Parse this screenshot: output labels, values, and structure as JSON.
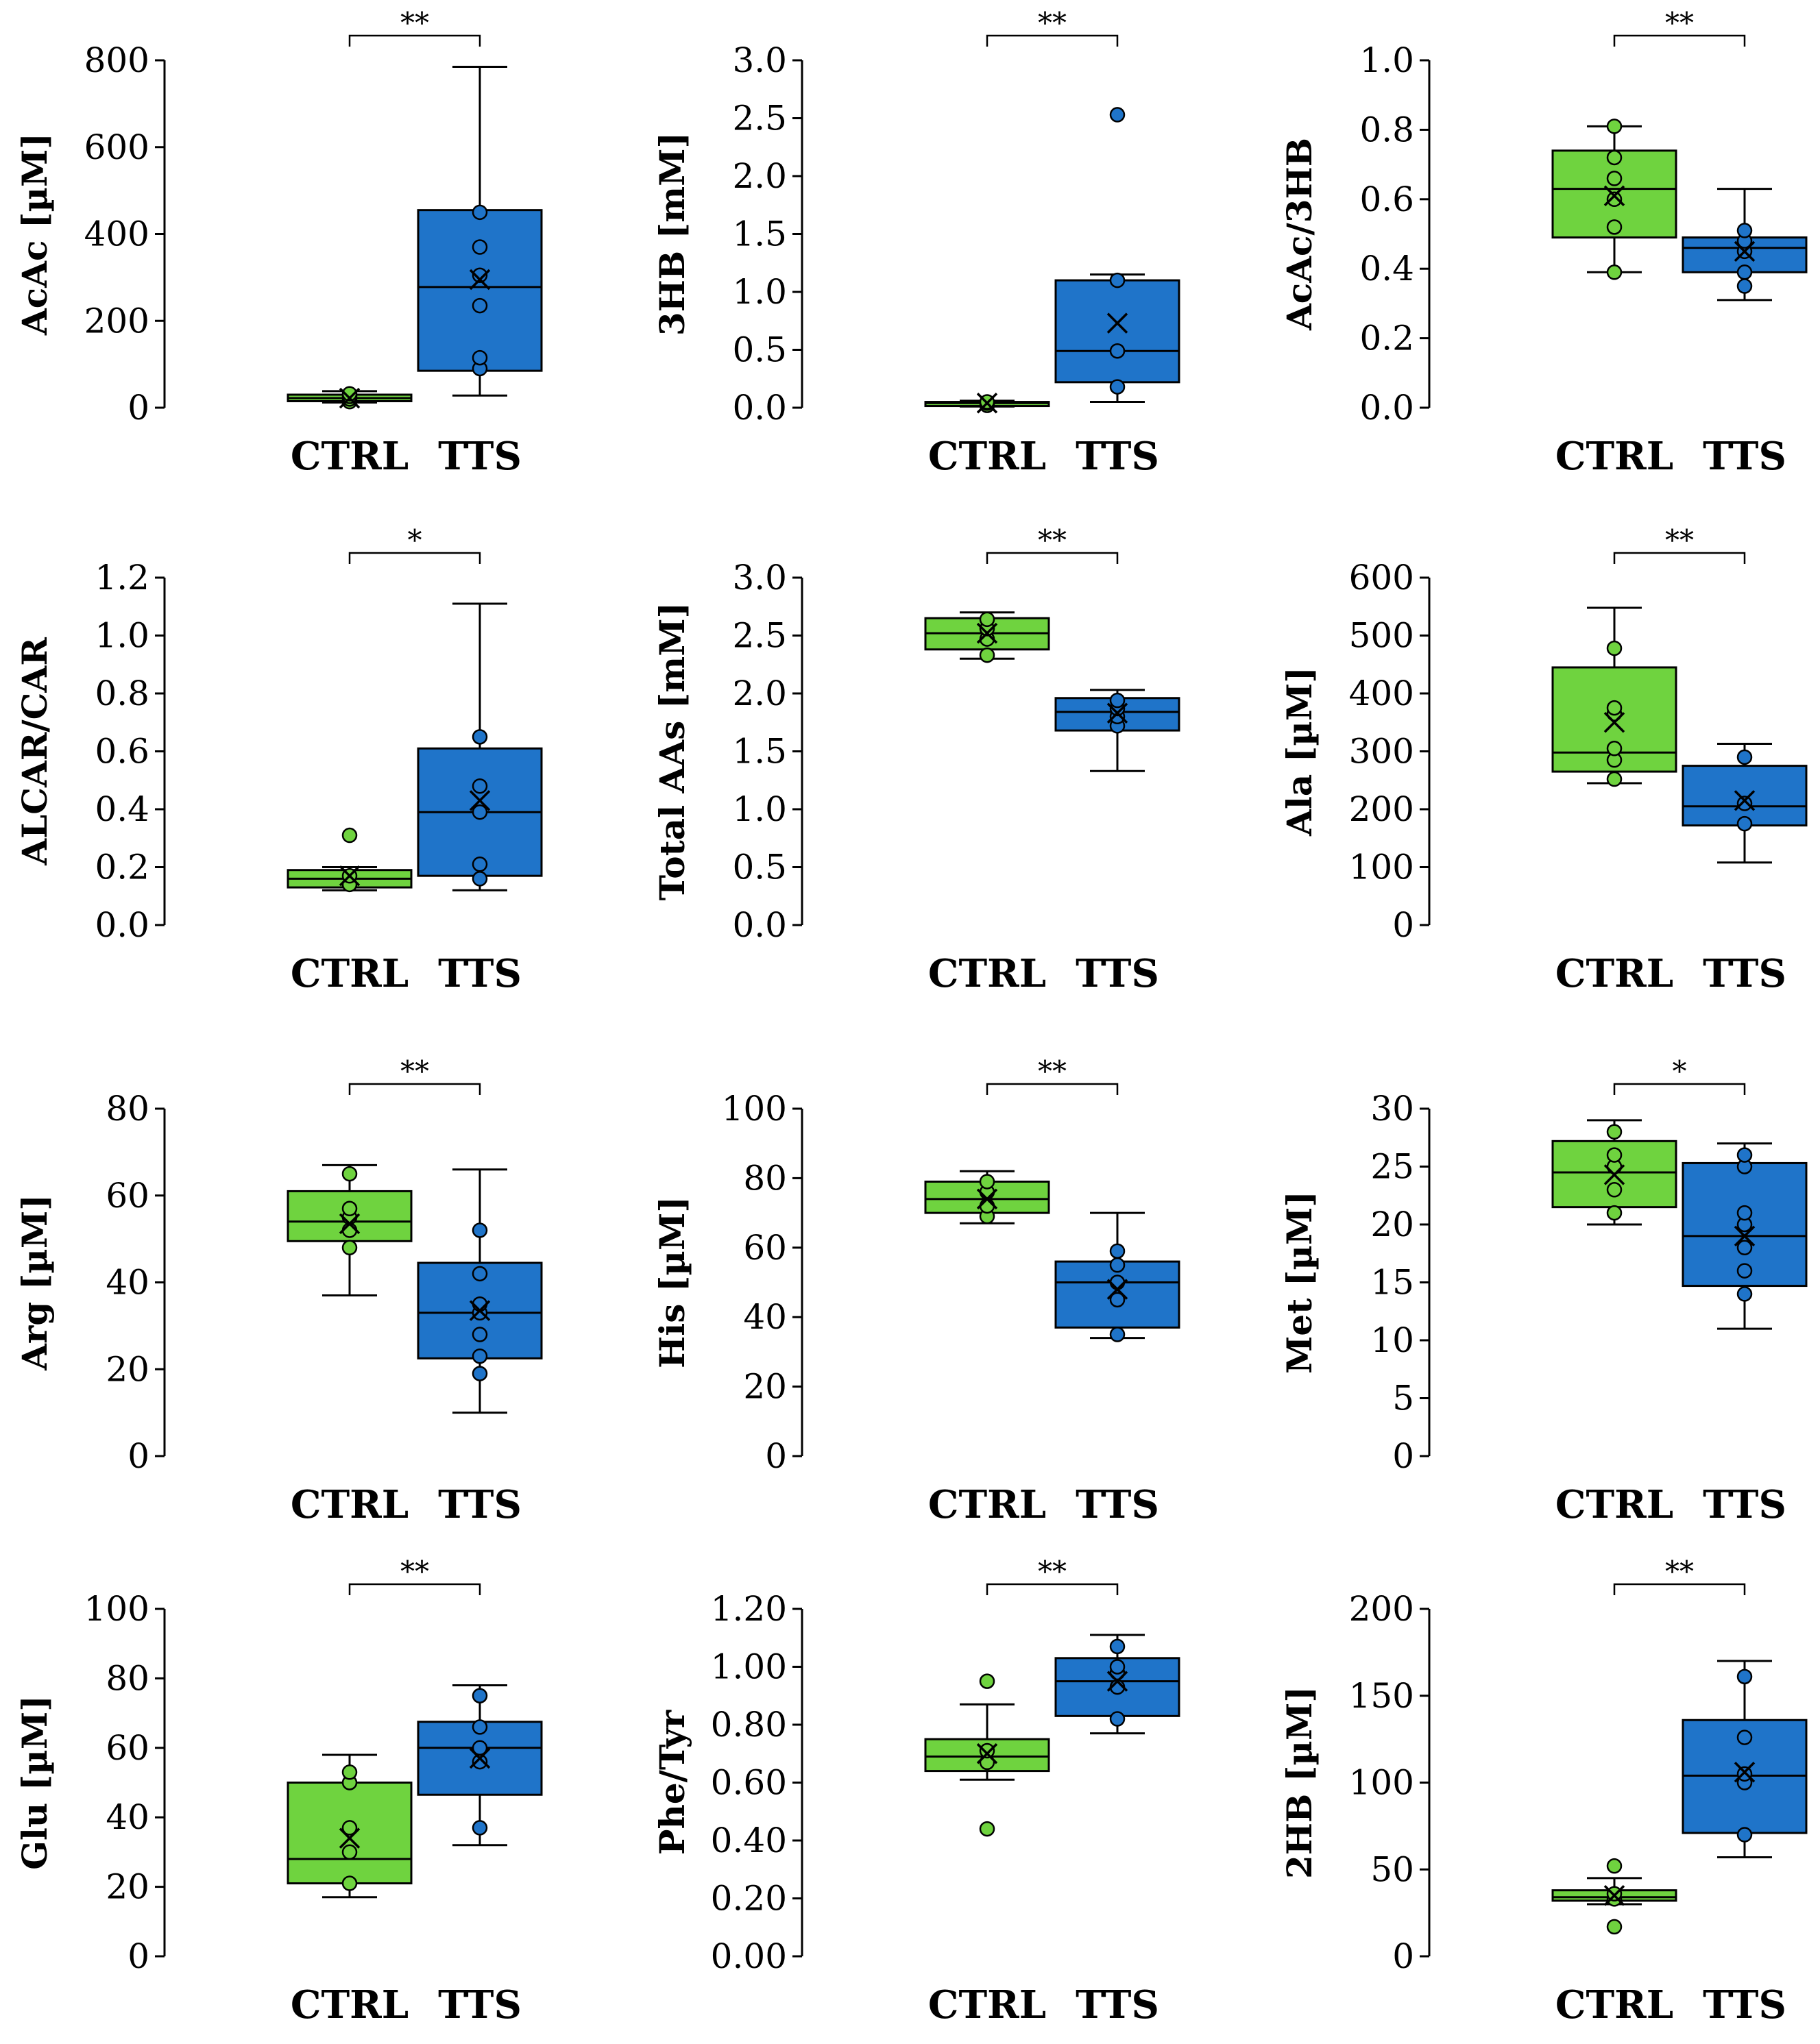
{
  "figure_colors": {
    "CTRL": "#6fd33f",
    "TTS": "#1f74c9",
    "stroke": "#000000"
  },
  "chart_data": [
    {
      "type": "box",
      "ylabel": "AcAc [µM]",
      "ylim": [
        0,
        800
      ],
      "yticks": [
        "0",
        "200",
        "400",
        "600",
        "800"
      ],
      "categories": [
        "CTRL",
        "TTS"
      ],
      "significance": "**",
      "groups": [
        {
          "name": "CTRL",
          "min": 12,
          "q1": 15,
          "median": 22,
          "q3": 30,
          "max": 38,
          "mean": 22,
          "points": [
            14,
            20,
            26,
            32
          ]
        },
        {
          "name": "TTS",
          "min": 28,
          "q1": 85,
          "median": 278,
          "q3": 455,
          "max": 785,
          "mean": 295,
          "points": [
            90,
            115,
            235,
            305,
            370,
            450
          ]
        }
      ]
    },
    {
      "type": "box",
      "ylabel": "3HB [mM]",
      "ylim": [
        0,
        3.0
      ],
      "yticks": [
        "0.0",
        "0.5",
        "1.0",
        "1.5",
        "2.0",
        "2.5",
        "3.0"
      ],
      "categories": [
        "CTRL",
        "TTS"
      ],
      "significance": "**",
      "groups": [
        {
          "name": "CTRL",
          "min": 0.01,
          "q1": 0.02,
          "median": 0.04,
          "q3": 0.05,
          "max": 0.06,
          "mean": 0.04,
          "points": [
            0.02,
            0.04,
            0.05
          ]
        },
        {
          "name": "TTS",
          "min": 0.05,
          "q1": 0.22,
          "median": 0.49,
          "q3": 1.1,
          "max": 1.15,
          "mean": 0.73,
          "points": [
            0.18,
            0.49,
            1.1,
            2.53
          ]
        }
      ]
    },
    {
      "type": "box",
      "ylabel": "AcAc/3HB",
      "ylim": [
        0,
        1.0
      ],
      "yticks": [
        "0.0",
        "0.2",
        "0.4",
        "0.6",
        "0.8",
        "1.0"
      ],
      "categories": [
        "CTRL",
        "TTS"
      ],
      "significance": "**",
      "groups": [
        {
          "name": "CTRL",
          "min": 0.39,
          "q1": 0.49,
          "median": 0.63,
          "q3": 0.74,
          "max": 0.81,
          "mean": 0.61,
          "points": [
            0.39,
            0.52,
            0.6,
            0.66,
            0.72,
            0.81
          ]
        },
        {
          "name": "TTS",
          "min": 0.31,
          "q1": 0.39,
          "median": 0.46,
          "q3": 0.49,
          "max": 0.63,
          "mean": 0.45,
          "points": [
            0.35,
            0.39,
            0.45,
            0.48,
            0.51
          ]
        }
      ]
    },
    {
      "type": "box",
      "ylabel": "ALCAR/CAR",
      "ylim": [
        0,
        1.2
      ],
      "yticks": [
        "0.0",
        "0.2",
        "0.4",
        "0.6",
        "0.8",
        "1.0",
        "1.2"
      ],
      "categories": [
        "CTRL",
        "TTS"
      ],
      "significance": "*",
      "groups": [
        {
          "name": "CTRL",
          "min": 0.12,
          "q1": 0.13,
          "median": 0.16,
          "q3": 0.19,
          "max": 0.2,
          "mean": 0.17,
          "points": [
            0.14,
            0.17,
            0.31
          ]
        },
        {
          "name": "TTS",
          "min": 0.12,
          "q1": 0.17,
          "median": 0.39,
          "q3": 0.61,
          "max": 1.11,
          "mean": 0.43,
          "points": [
            0.16,
            0.21,
            0.39,
            0.48,
            0.65
          ]
        }
      ]
    },
    {
      "type": "box",
      "ylabel": "Total AAs [mM]",
      "ylim": [
        0,
        3.0
      ],
      "yticks": [
        "0.0",
        "0.5",
        "1.0",
        "1.5",
        "2.0",
        "2.5",
        "3.0"
      ],
      "categories": [
        "CTRL",
        "TTS"
      ],
      "significance": "**",
      "groups": [
        {
          "name": "CTRL",
          "min": 2.3,
          "q1": 2.38,
          "median": 2.52,
          "q3": 2.65,
          "max": 2.7,
          "mean": 2.52,
          "points": [
            2.33,
            2.47,
            2.56,
            2.64
          ]
        },
        {
          "name": "TTS",
          "min": 1.33,
          "q1": 1.68,
          "median": 1.84,
          "q3": 1.96,
          "max": 2.03,
          "mean": 1.83,
          "points": [
            1.72,
            1.8,
            1.87,
            1.94
          ]
        }
      ]
    },
    {
      "type": "box",
      "ylabel": "Ala [µM]",
      "ylim": [
        0,
        600
      ],
      "yticks": [
        "0",
        "100",
        "200",
        "300",
        "400",
        "500",
        "600"
      ],
      "categories": [
        "CTRL",
        "TTS"
      ],
      "significance": "**",
      "groups": [
        {
          "name": "CTRL",
          "min": 245,
          "q1": 265,
          "median": 298,
          "q3": 445,
          "max": 548,
          "mean": 350,
          "points": [
            252,
            285,
            305,
            365,
            375,
            478
          ]
        },
        {
          "name": "TTS",
          "min": 108,
          "q1": 172,
          "median": 205,
          "q3": 275,
          "max": 313,
          "mean": 215,
          "points": [
            175,
            210,
            290
          ]
        }
      ]
    },
    {
      "type": "box",
      "ylabel": "Arg [µM]",
      "ylim": [
        0,
        80
      ],
      "yticks": [
        "0",
        "20",
        "40",
        "60",
        "80"
      ],
      "categories": [
        "CTRL",
        "TTS"
      ],
      "significance": "**",
      "groups": [
        {
          "name": "CTRL",
          "min": 37,
          "q1": 49.5,
          "median": 54,
          "q3": 61,
          "max": 67,
          "mean": 53.5,
          "points": [
            48,
            52,
            55,
            57,
            65
          ]
        },
        {
          "name": "TTS",
          "min": 10,
          "q1": 22.5,
          "median": 33,
          "q3": 44.5,
          "max": 66,
          "mean": 33.5,
          "points": [
            19,
            23,
            28,
            33,
            35,
            42,
            52
          ]
        }
      ]
    },
    {
      "type": "box",
      "ylabel": "His [µM]",
      "ylim": [
        0,
        100
      ],
      "yticks": [
        "0",
        "20",
        "40",
        "60",
        "80",
        "100"
      ],
      "categories": [
        "CTRL",
        "TTS"
      ],
      "significance": "**",
      "groups": [
        {
          "name": "CTRL",
          "min": 67,
          "q1": 70,
          "median": 74,
          "q3": 79,
          "max": 82,
          "mean": 74,
          "points": [
            69,
            72,
            76,
            79
          ]
        },
        {
          "name": "TTS",
          "min": 34,
          "q1": 37,
          "median": 50,
          "q3": 56,
          "max": 70,
          "mean": 48,
          "points": [
            35,
            45,
            50,
            55,
            59
          ]
        }
      ]
    },
    {
      "type": "box",
      "ylabel": "Met [µM]",
      "ylim": [
        0,
        30
      ],
      "yticks": [
        "0",
        "5",
        "10",
        "15",
        "20",
        "25",
        "30"
      ],
      "categories": [
        "CTRL",
        "TTS"
      ],
      "significance": "*",
      "groups": [
        {
          "name": "CTRL",
          "min": 20,
          "q1": 21.5,
          "median": 24.5,
          "q3": 27.2,
          "max": 29,
          "mean": 24.3,
          "points": [
            21,
            23,
            25,
            26,
            28
          ]
        },
        {
          "name": "TTS",
          "min": 11,
          "q1": 14.7,
          "median": 19,
          "q3": 25.3,
          "max": 27,
          "mean": 19,
          "points": [
            14,
            16,
            18,
            20,
            21,
            25,
            26
          ]
        }
      ]
    },
    {
      "type": "box",
      "ylabel": "Glu [µM]",
      "ylim": [
        0,
        100
      ],
      "yticks": [
        "0",
        "20",
        "40",
        "60",
        "80",
        "100"
      ],
      "categories": [
        "CTRL",
        "TTS"
      ],
      "significance": "**",
      "groups": [
        {
          "name": "CTRL",
          "min": 17,
          "q1": 21,
          "median": 28,
          "q3": 50,
          "max": 58,
          "mean": 34,
          "points": [
            21,
            30,
            37,
            50,
            53
          ]
        },
        {
          "name": "TTS",
          "min": 32,
          "q1": 46.5,
          "median": 60,
          "q3": 67.5,
          "max": 78,
          "mean": 57,
          "points": [
            37,
            56,
            60,
            66,
            75
          ]
        }
      ]
    },
    {
      "type": "box",
      "ylabel": "Phe/Tyr",
      "ylim": [
        0,
        1.2
      ],
      "yticks": [
        "0.00",
        "0.20",
        "0.40",
        "0.60",
        "0.80",
        "1.00",
        "1.20"
      ],
      "categories": [
        "CTRL",
        "TTS"
      ],
      "significance": "**",
      "groups": [
        {
          "name": "CTRL",
          "min": 0.61,
          "q1": 0.64,
          "median": 0.69,
          "q3": 0.75,
          "max": 0.87,
          "mean": 0.7,
          "points": [
            0.44,
            0.67,
            0.71,
            0.95
          ]
        },
        {
          "name": "TTS",
          "min": 0.77,
          "q1": 0.83,
          "median": 0.95,
          "q3": 1.03,
          "max": 1.11,
          "mean": 0.95,
          "points": [
            0.82,
            0.93,
            0.98,
            1.0,
            1.07
          ]
        }
      ]
    },
    {
      "type": "box",
      "ylabel": "2HB [µM]",
      "ylim": [
        0,
        200
      ],
      "yticks": [
        "0",
        "50",
        "100",
        "150",
        "200"
      ],
      "categories": [
        "CTRL",
        "TTS"
      ],
      "significance": "**",
      "groups": [
        {
          "name": "CTRL",
          "min": 30,
          "q1": 32,
          "median": 34,
          "q3": 38,
          "max": 45,
          "mean": 35,
          "points": [
            17,
            33,
            36,
            52
          ]
        },
        {
          "name": "TTS",
          "min": 57,
          "q1": 71,
          "median": 104,
          "q3": 136,
          "max": 170,
          "mean": 106,
          "points": [
            70,
            100,
            105,
            126,
            161
          ]
        }
      ]
    }
  ]
}
